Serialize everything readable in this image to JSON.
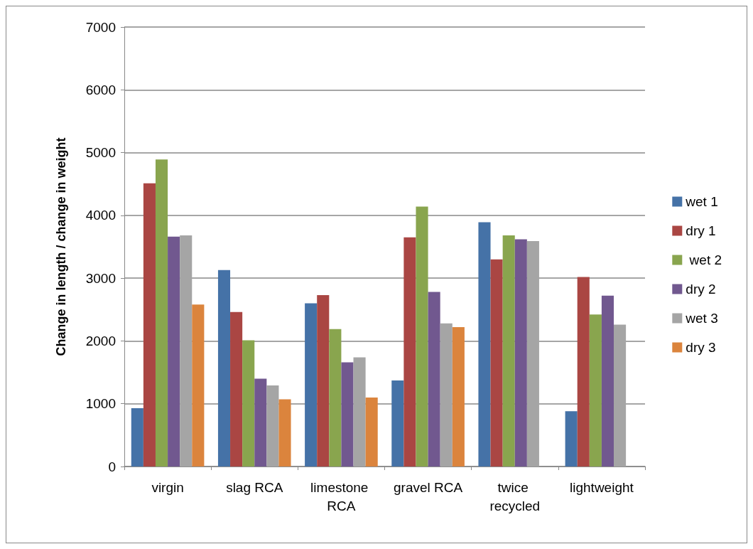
{
  "chart_data": {
    "type": "bar",
    "ylabel": "Change in length / change in weight",
    "categories": [
      "virgin",
      "slag RCA",
      "limestone RCA",
      "gravel RCA",
      "twice recycled",
      "lightweight"
    ],
    "series": [
      {
        "name": "wet 1",
        "color": "#4572a7",
        "values": [
          930,
          3130,
          2600,
          1370,
          3890,
          880
        ]
      },
      {
        "name": "dry 1",
        "color": "#aa4643",
        "values": [
          4510,
          2460,
          2730,
          3650,
          3300,
          3020
        ]
      },
      {
        "name": " wet 2",
        "color": "#89a54e",
        "values": [
          4890,
          2010,
          2190,
          4140,
          3680,
          2420
        ]
      },
      {
        "name": "dry 2",
        "color": "#71588f",
        "values": [
          3660,
          1400,
          1660,
          2780,
          3620,
          2720
        ]
      },
      {
        "name": "wet 3",
        "color": "#a5a5a5",
        "values": [
          3680,
          1290,
          1740,
          2280,
          3590,
          2260
        ]
      },
      {
        "name": "dry 3",
        "color": "#db843d",
        "values": [
          2580,
          1070,
          1100,
          2220,
          null,
          null
        ]
      }
    ],
    "ylim": [
      0,
      7000
    ],
    "yticks": [
      0,
      1000,
      2000,
      3000,
      4000,
      5000,
      6000,
      7000
    ],
    "grid": "y",
    "legend": "right"
  }
}
